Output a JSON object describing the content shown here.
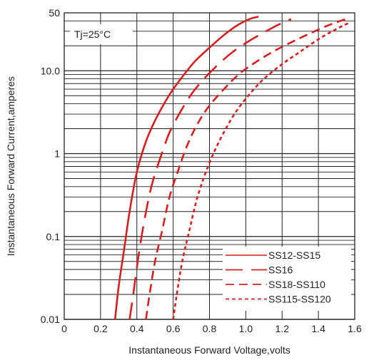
{
  "chart_data": {
    "type": "line",
    "xlabel": "Instantaneous Forward Voltage,volts",
    "ylabel": "Instantaneous Forward Current,amperes",
    "annotation": "Tj=25°C",
    "xlim": [
      0,
      1.6
    ],
    "ylim": [
      0.01,
      50
    ],
    "yscale": "log",
    "grid": true,
    "legend_position": "bottom-right",
    "x_ticks": [
      {
        "value": 0,
        "label": "0"
      },
      {
        "value": 0.2,
        "label": "0.2"
      },
      {
        "value": 0.4,
        "label": "0.4"
      },
      {
        "value": 0.6,
        "label": "0.6"
      },
      {
        "value": 0.8,
        "label": "0.8"
      },
      {
        "value": 1.0,
        "label": "1.0"
      },
      {
        "value": 1.2,
        "label": "1.2"
      },
      {
        "value": 1.4,
        "label": "1.4"
      },
      {
        "value": 1.6,
        "label": "1.6"
      }
    ],
    "y_ticks": [
      {
        "value": 0.01,
        "label": "0.01"
      },
      {
        "value": 0.1,
        "label": "0.1"
      },
      {
        "value": 1,
        "label": "1"
      },
      {
        "value": 10,
        "label": "10.0"
      },
      {
        "value": 50,
        "label": "50"
      }
    ],
    "series_color": "#d42020",
    "series": [
      {
        "name": "SS12-SS15",
        "dash": "solid",
        "x": [
          0.28,
          0.3,
          0.33,
          0.36,
          0.4,
          0.45,
          0.5,
          0.55,
          0.6,
          0.66,
          0.72,
          0.8,
          0.88,
          0.95,
          1.02,
          1.07
        ],
        "y": [
          0.01,
          0.025,
          0.07,
          0.2,
          0.6,
          1.4,
          2.5,
          4.0,
          6.0,
          9.0,
          13.0,
          19.0,
          27.0,
          35.0,
          42.0,
          45.0
        ]
      },
      {
        "name": "SS16",
        "dash": "long",
        "x": [
          0.36,
          0.38,
          0.41,
          0.44,
          0.48,
          0.53,
          0.58,
          0.64,
          0.7,
          0.77,
          0.85,
          0.93,
          1.02,
          1.1,
          1.18,
          1.25
        ],
        "y": [
          0.01,
          0.02,
          0.06,
          0.15,
          0.4,
          0.9,
          1.8,
          3.2,
          5.2,
          8.0,
          12.0,
          17.0,
          23.0,
          29.0,
          36.0,
          42.0
        ]
      },
      {
        "name": "SS18-SS110",
        "dash": "medium",
        "x": [
          0.45,
          0.47,
          0.5,
          0.54,
          0.58,
          0.63,
          0.68,
          0.74,
          0.8,
          0.88,
          0.96,
          1.05,
          1.15,
          1.25,
          1.35,
          1.45,
          1.55
        ],
        "y": [
          0.01,
          0.02,
          0.05,
          0.12,
          0.3,
          0.65,
          1.3,
          2.4,
          3.8,
          6.0,
          9.0,
          12.5,
          17.0,
          22.0,
          28.0,
          35.0,
          42.0
        ]
      },
      {
        "name": "SS115-SS120",
        "dash": "short",
        "x": [
          0.6,
          0.62,
          0.65,
          0.69,
          0.73,
          0.78,
          0.83,
          0.89,
          0.95,
          1.02,
          1.1,
          1.2,
          1.3,
          1.4,
          1.5,
          1.57
        ],
        "y": [
          0.01,
          0.02,
          0.05,
          0.12,
          0.28,
          0.6,
          1.1,
          2.0,
          3.3,
          5.2,
          8.0,
          12.0,
          17.0,
          24.0,
          32.0,
          38.0
        ]
      }
    ]
  }
}
